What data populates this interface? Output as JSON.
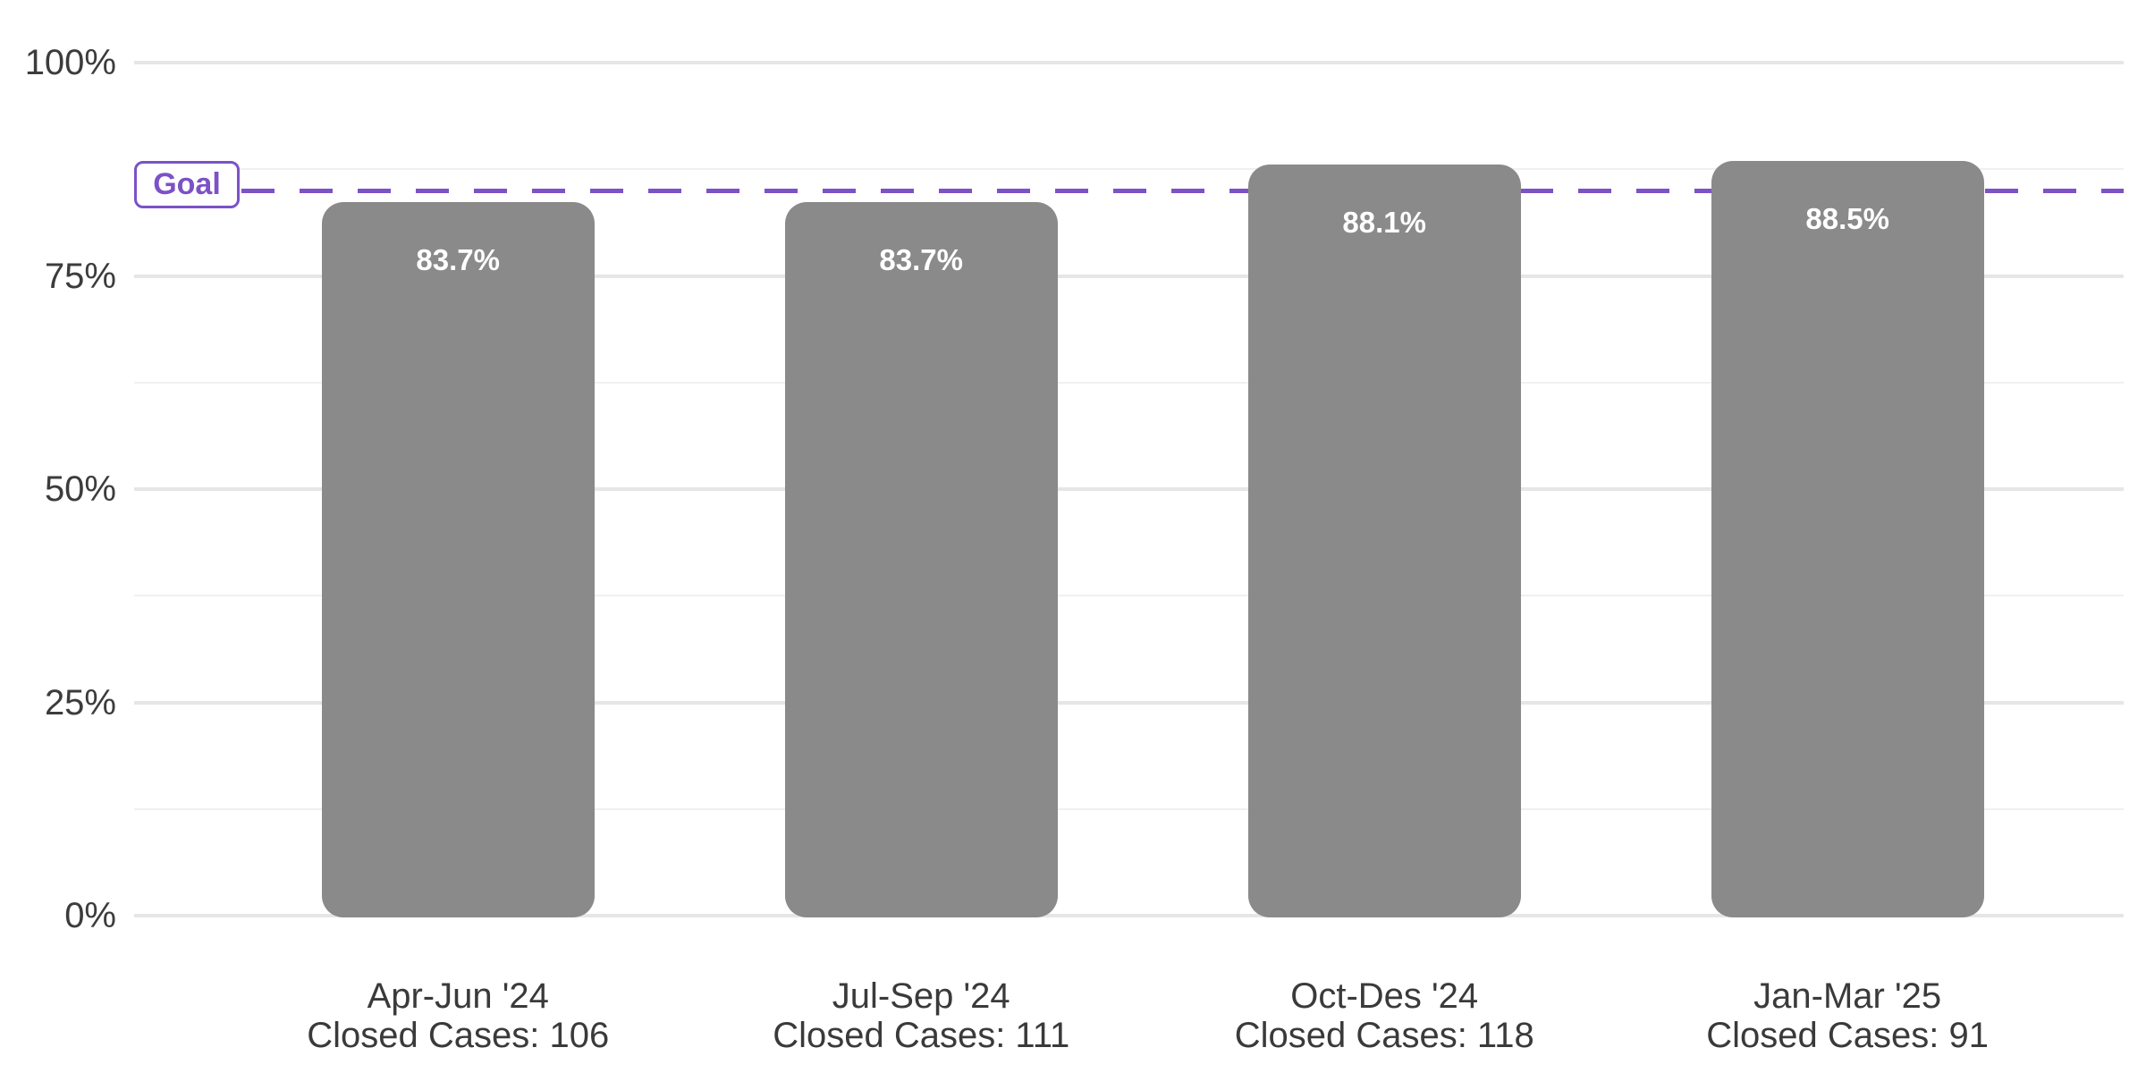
{
  "chart_data": {
    "type": "bar",
    "title": "",
    "xlabel": "",
    "ylabel": "",
    "ylim": [
      0,
      100
    ],
    "grid": true,
    "categories": [
      "Apr-Jun '24",
      "Jul-Sep '24",
      "Oct-Des '24",
      "Jan-Mar '25"
    ],
    "values": [
      83.7,
      83.7,
      88.1,
      88.5
    ],
    "bar_value_labels": [
      "83.7%",
      "83.7%",
      "88.1%",
      "88.5%"
    ],
    "closed_cases": [
      106,
      111,
      118,
      91
    ],
    "x_sublabels": [
      "Closed Cases: 106",
      "Closed Cases: 111",
      "Closed Cases: 118",
      "Closed Cases: 91"
    ],
    "y_ticks": [
      {
        "value": 0,
        "label": "0%",
        "major": true
      },
      {
        "value": 12.5,
        "label": "",
        "major": false
      },
      {
        "value": 25,
        "label": "25%",
        "major": true
      },
      {
        "value": 37.5,
        "label": "",
        "major": false
      },
      {
        "value": 50,
        "label": "50%",
        "major": true
      },
      {
        "value": 62.5,
        "label": "",
        "major": false
      },
      {
        "value": 75,
        "label": "75%",
        "major": true
      },
      {
        "value": 87.5,
        "label": "",
        "major": false
      },
      {
        "value": 100,
        "label": "100%",
        "major": true
      }
    ],
    "goal": {
      "label": "Goal",
      "value": 85
    },
    "colors": {
      "bar": "#8a8a8a",
      "goal": "#7c52c6",
      "bar_label_text": "#ffffff",
      "axis_text": "#3c3c3c"
    }
  }
}
